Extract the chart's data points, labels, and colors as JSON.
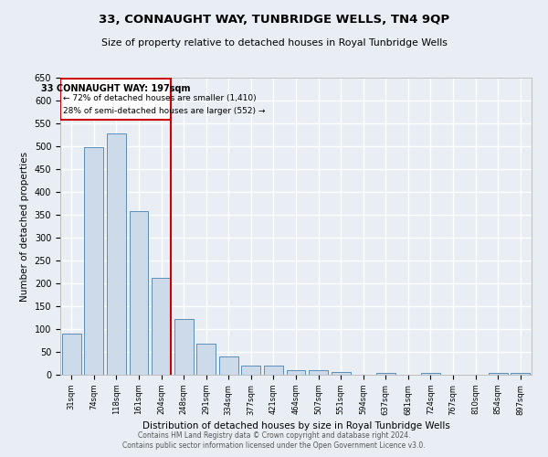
{
  "title": "33, CONNAUGHT WAY, TUNBRIDGE WELLS, TN4 9QP",
  "subtitle": "Size of property relative to detached houses in Royal Tunbridge Wells",
  "xlabel": "Distribution of detached houses by size in Royal Tunbridge Wells",
  "ylabel": "Number of detached properties",
  "categories": [
    "31sqm",
    "74sqm",
    "118sqm",
    "161sqm",
    "204sqm",
    "248sqm",
    "291sqm",
    "334sqm",
    "377sqm",
    "421sqm",
    "464sqm",
    "507sqm",
    "551sqm",
    "594sqm",
    "637sqm",
    "681sqm",
    "724sqm",
    "767sqm",
    "810sqm",
    "854sqm",
    "897sqm"
  ],
  "values": [
    90,
    497,
    528,
    357,
    213,
    122,
    69,
    40,
    20,
    20,
    11,
    11,
    6,
    0,
    5,
    0,
    5,
    0,
    0,
    5,
    5
  ],
  "property_index": 4,
  "property_label": "33 CONNAUGHT WAY: 197sqm",
  "annotation_line1": "← 72% of detached houses are smaller (1,410)",
  "annotation_line2": "28% of semi-detached houses are larger (552) →",
  "bar_color": "#cddaea",
  "bar_edge_color": "#5b8db8",
  "vline_color": "#cc0000",
  "ylim": [
    0,
    650
  ],
  "yticks": [
    0,
    50,
    100,
    150,
    200,
    250,
    300,
    350,
    400,
    450,
    500,
    550,
    600,
    650
  ],
  "bg_color": "#e8eef4",
  "plot_bg": "#e8eef4",
  "grid_color": "#ffffff",
  "annotation_box_edgecolor": "#cc0000",
  "annotation_box_facecolor": "#ffffff",
  "footer1": "Contains HM Land Registry data © Crown copyright and database right 2024.",
  "footer2": "Contains public sector information licensed under the Open Government Licence v3.0."
}
